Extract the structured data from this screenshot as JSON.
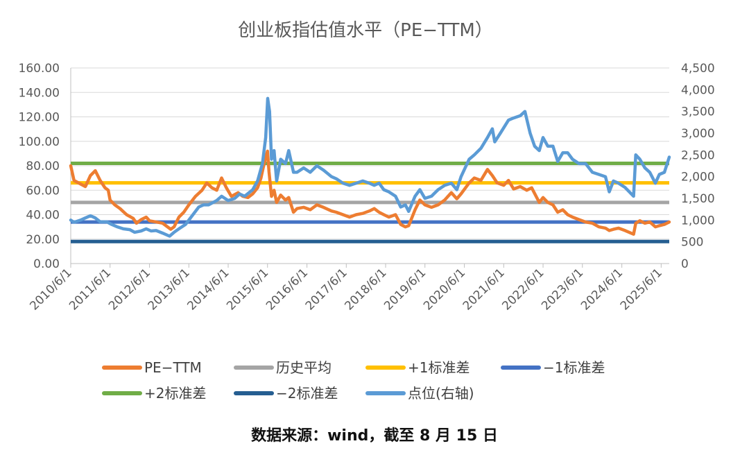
{
  "chart_data": {
    "type": "line",
    "title": "创业板指估值水平（PE−TTM）",
    "y_left": {
      "ylim": [
        0,
        160
      ],
      "ticks": [
        "0.00",
        "20.00",
        "40.00",
        "60.00",
        "80.00",
        "100.00",
        "120.00",
        "140.00",
        "160.00"
      ]
    },
    "y_right": {
      "ylim": [
        0,
        4500
      ],
      "ticks": [
        "0",
        "500",
        "1,000",
        "1,500",
        "2,000",
        "2,500",
        "3,000",
        "3,500",
        "4,000",
        "4,500"
      ]
    },
    "x_range": [
      "2010-06-01",
      "2025-08-15"
    ],
    "x_ticks": [
      "2010/6/1",
      "2011/6/1",
      "2012/6/1",
      "2013/6/1",
      "2014/6/1",
      "2015/6/1",
      "2016/6/1",
      "2017/6/1",
      "2018/6/1",
      "2019/6/1",
      "2020/6/1",
      "2021/6/1",
      "2022/6/1",
      "2023/6/1",
      "2024/6/1",
      "2025/6/1"
    ],
    "grid": true,
    "legend_position": "bottom",
    "series": [
      {
        "name": "PE−TTM",
        "axis": "left",
        "color": "#ED7D31",
        "x": [
          "2010-06-01",
          "2010-07-01",
          "2010-09-01",
          "2010-10-15",
          "2010-12-01",
          "2011-01-15",
          "2011-03-01",
          "2011-04-15",
          "2011-05-15",
          "2011-06-01",
          "2011-07-15",
          "2011-09-01",
          "2011-11-01",
          "2012-01-01",
          "2012-02-01",
          "2012-03-15",
          "2012-05-01",
          "2012-06-01",
          "2012-08-01",
          "2012-10-01",
          "2012-11-15",
          "2012-12-15",
          "2013-01-15",
          "2013-03-01",
          "2013-04-15",
          "2013-06-01",
          "2013-08-01",
          "2013-10-01",
          "2013-11-15",
          "2014-01-01",
          "2014-02-15",
          "2014-04-01",
          "2014-05-15",
          "2014-07-01",
          "2014-09-01",
          "2014-10-15",
          "2014-12-01",
          "2015-01-15",
          "2015-03-01",
          "2015-04-01",
          "2015-05-01",
          "2015-06-01",
          "2015-06-15",
          "2015-07-08",
          "2015-08-01",
          "2015-08-25",
          "2015-10-01",
          "2015-11-15",
          "2015-12-15",
          "2016-01-28",
          "2016-03-01",
          "2016-05-01",
          "2016-07-01",
          "2016-09-01",
          "2016-11-01",
          "2017-01-15",
          "2017-03-01",
          "2017-05-01",
          "2017-07-01",
          "2017-09-01",
          "2017-11-01",
          "2018-01-01",
          "2018-02-15",
          "2018-04-01",
          "2018-05-15",
          "2018-07-01",
          "2018-09-01",
          "2018-10-19",
          "2018-12-01",
          "2019-01-01",
          "2019-03-01",
          "2019-04-15",
          "2019-06-01",
          "2019-08-01",
          "2019-10-01",
          "2019-12-01",
          "2020-02-01",
          "2020-03-23",
          "2020-05-01",
          "2020-07-15",
          "2020-09-01",
          "2020-11-01",
          "2021-01-01",
          "2021-02-15",
          "2021-04-01",
          "2021-06-01",
          "2021-07-15",
          "2021-09-01",
          "2021-11-01",
          "2022-01-01",
          "2022-02-15",
          "2022-04-27",
          "2022-06-01",
          "2022-07-15",
          "2022-09-01",
          "2022-10-15",
          "2022-12-01",
          "2023-01-15",
          "2023-03-01",
          "2023-05-01",
          "2023-07-01",
          "2023-09-01",
          "2023-11-01",
          "2024-01-01",
          "2024-02-05",
          "2024-03-15",
          "2024-05-01",
          "2024-07-01",
          "2024-09-18",
          "2024-10-08",
          "2024-11-15",
          "2025-01-01",
          "2025-02-15",
          "2025-04-08",
          "2025-05-15",
          "2025-07-01",
          "2025-08-15"
        ],
        "values": [
          80,
          68,
          65,
          63,
          72,
          76,
          68,
          62,
          60,
          52,
          48,
          45,
          40,
          37,
          33,
          36,
          38,
          35,
          34,
          33,
          30,
          28,
          30,
          38,
          42,
          48,
          55,
          60,
          66,
          62,
          60,
          70,
          62,
          55,
          58,
          55,
          54,
          57,
          62,
          70,
          82,
          92,
          75,
          55,
          60,
          50,
          56,
          52,
          54,
          42,
          45,
          46,
          44,
          48,
          46,
          43,
          42,
          40,
          38,
          40,
          41,
          43,
          45,
          42,
          40,
          38,
          40,
          32,
          30,
          31,
          44,
          52,
          48,
          46,
          48,
          52,
          58,
          53,
          57,
          66,
          70,
          68,
          77,
          72,
          66,
          64,
          68,
          61,
          63,
          60,
          62,
          50,
          54,
          50,
          48,
          42,
          44,
          40,
          38,
          36,
          34,
          33,
          30,
          29,
          27,
          28,
          29,
          27,
          24,
          33,
          35,
          33,
          34,
          30,
          31,
          32,
          34
        ]
      },
      {
        "name": "历史平均",
        "axis": "left",
        "color": "#A5A5A5",
        "value": 50.0
      },
      {
        "name": "+1标准差",
        "axis": "left",
        "color": "#FFC000",
        "value": 66.0
      },
      {
        "name": "−1标准差",
        "axis": "left",
        "color": "#4472C4",
        "value": 34.0
      },
      {
        "name": "+2标准差",
        "axis": "left",
        "color": "#70AD47",
        "value": 82.0
      },
      {
        "name": "−2标准差",
        "axis": "left",
        "color": "#255E91",
        "value": 18.0
      },
      {
        "name": "点位(右轴)",
        "axis": "right",
        "color": "#5B9BD5",
        "x": [
          "2010-06-01",
          "2010-07-01",
          "2010-09-01",
          "2010-10-15",
          "2010-12-01",
          "2011-01-15",
          "2011-03-01",
          "2011-05-01",
          "2011-06-15",
          "2011-08-01",
          "2011-10-01",
          "2011-12-01",
          "2012-01-15",
          "2012-03-15",
          "2012-05-01",
          "2012-06-15",
          "2012-08-01",
          "2012-10-01",
          "2012-12-04",
          "2013-01-15",
          "2013-03-01",
          "2013-05-01",
          "2013-07-01",
          "2013-09-01",
          "2013-10-15",
          "2013-12-01",
          "2014-02-15",
          "2014-04-01",
          "2014-06-01",
          "2014-08-01",
          "2014-09-15",
          "2014-11-01",
          "2015-01-15",
          "2015-03-01",
          "2015-04-15",
          "2015-05-15",
          "2015-06-03",
          "2015-06-20",
          "2015-07-08",
          "2015-08-01",
          "2015-08-25",
          "2015-10-01",
          "2015-11-15",
          "2015-12-15",
          "2016-01-28",
          "2016-03-01",
          "2016-05-01",
          "2016-07-01",
          "2016-09-01",
          "2016-11-01",
          "2017-01-15",
          "2017-03-01",
          "2017-05-01",
          "2017-07-01",
          "2017-09-01",
          "2017-11-01",
          "2018-01-01",
          "2018-02-15",
          "2018-04-01",
          "2018-05-15",
          "2018-07-01",
          "2018-09-01",
          "2018-10-19",
          "2018-12-01",
          "2019-01-01",
          "2019-03-01",
          "2019-04-15",
          "2019-06-01",
          "2019-08-01",
          "2019-10-01",
          "2019-12-01",
          "2020-02-01",
          "2020-03-23",
          "2020-05-01",
          "2020-07-15",
          "2020-09-01",
          "2020-11-01",
          "2021-01-01",
          "2021-02-15",
          "2021-03-10",
          "2021-05-01",
          "2021-07-15",
          "2021-09-01",
          "2021-11-01",
          "2021-12-15",
          "2022-02-01",
          "2022-03-15",
          "2022-04-27",
          "2022-06-01",
          "2022-07-15",
          "2022-09-01",
          "2022-10-15",
          "2022-12-01",
          "2023-01-15",
          "2023-03-01",
          "2023-05-01",
          "2023-07-01",
          "2023-09-01",
          "2023-11-01",
          "2024-01-01",
          "2024-02-05",
          "2024-03-15",
          "2024-05-01",
          "2024-07-01",
          "2024-09-18",
          "2024-10-08",
          "2024-11-15",
          "2025-01-01",
          "2025-02-15",
          "2025-04-08",
          "2025-05-15",
          "2025-07-01",
          "2025-08-15"
        ],
        "values": [
          1000,
          950,
          1000,
          1050,
          1100,
          1050,
          960,
          960,
          900,
          850,
          800,
          780,
          720,
          750,
          800,
          750,
          760,
          700,
          630,
          720,
          800,
          900,
          1100,
          1300,
          1350,
          1350,
          1450,
          1550,
          1450,
          1500,
          1600,
          1550,
          1700,
          1900,
          2300,
          2900,
          3800,
          3500,
          2400,
          2600,
          1900,
          2400,
          2300,
          2600,
          2100,
          2100,
          2200,
          2100,
          2250,
          2150,
          2000,
          1950,
          1850,
          1800,
          1850,
          1900,
          1850,
          1800,
          1850,
          1700,
          1650,
          1550,
          1300,
          1350,
          1200,
          1550,
          1700,
          1500,
          1550,
          1700,
          1800,
          1850,
          1700,
          2000,
          2400,
          2500,
          2650,
          2900,
          3100,
          2800,
          3000,
          3300,
          3350,
          3400,
          3500,
          3000,
          2700,
          2600,
          2900,
          2700,
          2700,
          2350,
          2550,
          2550,
          2400,
          2300,
          2300,
          2100,
          2050,
          2000,
          1650,
          1900,
          1850,
          1750,
          1550,
          2500,
          2400,
          2200,
          2100,
          1850,
          2050,
          2100,
          2450
        ]
      }
    ]
  },
  "source_note": "数据来源：wind，截至 8 月 15 日"
}
